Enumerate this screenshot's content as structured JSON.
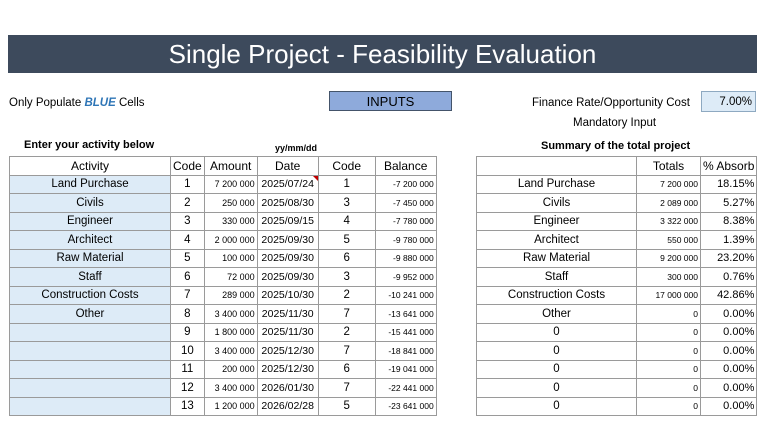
{
  "title": "Single Project - Feasibility Evaluation",
  "note": {
    "prefix": "Only Populate ",
    "highlight": "BLUE",
    "suffix": " Cells"
  },
  "inputs_button": "INPUTS",
  "finance": {
    "label": "Finance Rate/Opportunity Cost",
    "value": "7.00%",
    "mandatory": "Mandatory Input"
  },
  "activity_heading": "Enter your activity below",
  "date_format": "yy/mm/dd",
  "summary_heading": "Summary of the total project",
  "activity_table": {
    "headers": [
      "Activity",
      "Code",
      "Amount",
      "Date",
      "Code",
      "Balance"
    ],
    "rows": [
      {
        "activity": "Land Purchase",
        "code": "1",
        "amount": "7 200 000",
        "date": "2025/07/24",
        "code2": "1",
        "balance": "-7 200 000"
      },
      {
        "activity": "Civils",
        "code": "2",
        "amount": "250 000",
        "date": "2025/08/30",
        "code2": "3",
        "balance": "-7 450 000"
      },
      {
        "activity": "Engineer",
        "code": "3",
        "amount": "330 000",
        "date": "2025/09/15",
        "code2": "4",
        "balance": "-7 780 000"
      },
      {
        "activity": "Architect",
        "code": "4",
        "amount": "2 000 000",
        "date": "2025/09/30",
        "code2": "5",
        "balance": "-9 780 000"
      },
      {
        "activity": "Raw Material",
        "code": "5",
        "amount": "100 000",
        "date": "2025/09/30",
        "code2": "6",
        "balance": "-9 880 000"
      },
      {
        "activity": "Staff",
        "code": "6",
        "amount": "72 000",
        "date": "2025/09/30",
        "code2": "3",
        "balance": "-9 952 000"
      },
      {
        "activity": "Construction Costs",
        "code": "7",
        "amount": "289 000",
        "date": "2025/10/30",
        "code2": "2",
        "balance": "-10 241 000"
      },
      {
        "activity": "Other",
        "code": "8",
        "amount": "3 400 000",
        "date": "2025/11/30",
        "code2": "7",
        "balance": "-13 641 000"
      },
      {
        "activity": "",
        "code": "9",
        "amount": "1 800 000",
        "date": "2025/11/30",
        "code2": "2",
        "balance": "-15 441 000"
      },
      {
        "activity": "",
        "code": "10",
        "amount": "3 400 000",
        "date": "2025/12/30",
        "code2": "7",
        "balance": "-18 841 000"
      },
      {
        "activity": "",
        "code": "11",
        "amount": "200 000",
        "date": "2025/12/30",
        "code2": "6",
        "balance": "-19 041 000"
      },
      {
        "activity": "",
        "code": "12",
        "amount": "3 400 000",
        "date": "2026/01/30",
        "code2": "7",
        "balance": "-22 441 000"
      },
      {
        "activity": "",
        "code": "13",
        "amount": "1 200 000",
        "date": "2026/02/28",
        "code2": "5",
        "balance": "-23 641 000"
      }
    ]
  },
  "summary_table": {
    "headers": [
      "",
      "Totals",
      "% Absorb"
    ],
    "rows": [
      {
        "name": "Land Purchase",
        "total": "7 200 000",
        "pct": "18.15%"
      },
      {
        "name": "Civils",
        "total": "2 089 000",
        "pct": "5.27%"
      },
      {
        "name": "Engineer",
        "total": "3 322 000",
        "pct": "8.38%"
      },
      {
        "name": "Architect",
        "total": "550 000",
        "pct": "1.39%"
      },
      {
        "name": "Raw Material",
        "total": "9 200 000",
        "pct": "23.20%"
      },
      {
        "name": "Staff",
        "total": "300 000",
        "pct": "0.76%"
      },
      {
        "name": "Construction Costs",
        "total": "17 000 000",
        "pct": "42.86%"
      },
      {
        "name": "Other",
        "total": "0",
        "pct": "0.00%"
      },
      {
        "name": "0",
        "total": "0",
        "pct": "0.00%"
      },
      {
        "name": "0",
        "total": "0",
        "pct": "0.00%"
      },
      {
        "name": "0",
        "total": "0",
        "pct": "0.00%"
      },
      {
        "name": "0",
        "total": "0",
        "pct": "0.00%"
      },
      {
        "name": "0",
        "total": "0",
        "pct": "0.00%"
      }
    ]
  },
  "colors": {
    "banner": "#3d4a5c",
    "input_cell": "#ddebf7",
    "button": "#8eaadb",
    "blue_text": "#2e75b6",
    "comment_flag": "#c00000"
  }
}
